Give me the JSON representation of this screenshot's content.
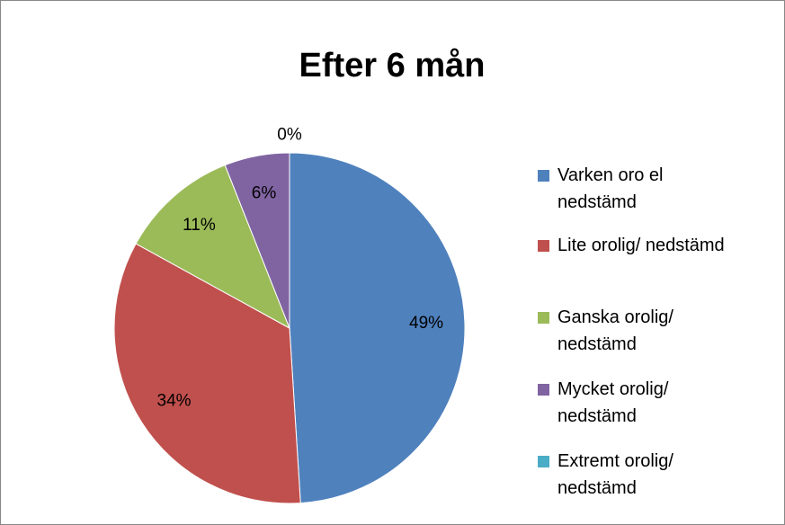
{
  "chart_data": {
    "type": "pie",
    "title": "Efter 6 mån",
    "categories": [
      "Varken oro el nedstämd",
      "Lite orolig/ nedstämd",
      "Ganska orolig/ nedstämd",
      "Mycket orolig/ nedstämd",
      "Extremt orolig/ nedstämd"
    ],
    "values": [
      49,
      34,
      11,
      6,
      0
    ],
    "value_labels": [
      "49%",
      "34%",
      "11%",
      "6%",
      "0%"
    ],
    "colors": [
      "#4f81bd",
      "#c0504d",
      "#9bbb59",
      "#8064a2",
      "#4bacc6"
    ],
    "legend": "right"
  }
}
